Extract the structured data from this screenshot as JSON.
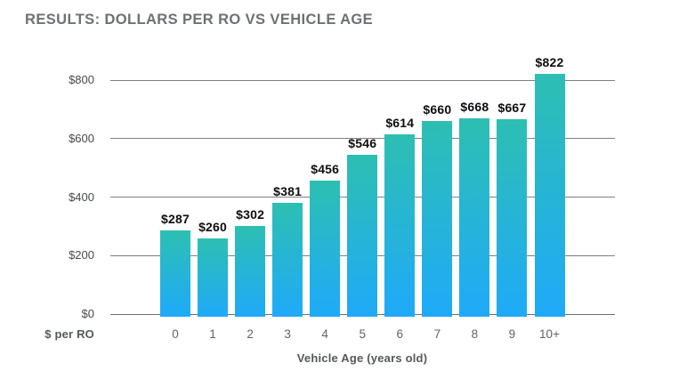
{
  "chart_data": {
    "type": "bar",
    "title": "RESULTS: DOLLARS PER RO VS VEHICLE AGE",
    "categories": [
      "0",
      "1",
      "2",
      "3",
      "4",
      "5",
      "6",
      "7",
      "8",
      "9",
      "10+"
    ],
    "values": [
      287,
      260,
      302,
      381,
      456,
      546,
      614,
      660,
      668,
      667,
      822
    ],
    "bar_labels": [
      "$287",
      "$260",
      "$302",
      "$381",
      "$456",
      "$546",
      "$614",
      "$660",
      "$668",
      "$667",
      "$822"
    ],
    "xlabel": "Vehicle Age (years old)",
    "ylabel": "$ per RO",
    "yticks": [
      {
        "value": 0,
        "label": "$0"
      },
      {
        "value": 200,
        "label": "$200"
      },
      {
        "value": 400,
        "label": "$400"
      },
      {
        "value": 600,
        "label": "$600"
      },
      {
        "value": 800,
        "label": "$800"
      }
    ],
    "ylim": [
      0,
      800
    ],
    "grid": "horizontal-only",
    "legend": "none",
    "colors": {
      "bar_gradient_top": "#2dbfb2",
      "bar_gradient_bottom": "#1faaf9",
      "gridline": "#7d8084",
      "title_text": "#6c7176",
      "bar_label_text": "#0d0e10"
    }
  }
}
